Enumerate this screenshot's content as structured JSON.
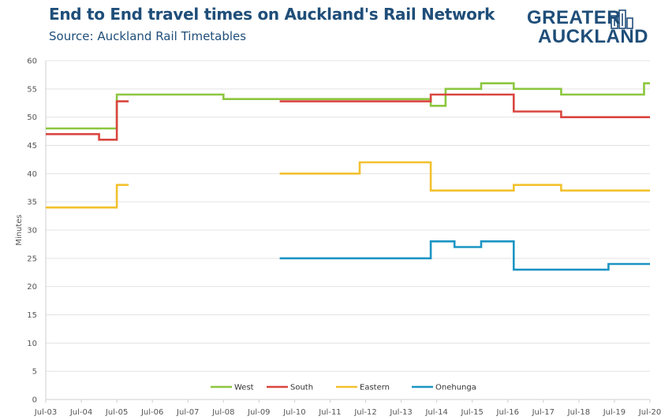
{
  "title": "End to End travel times on Auckland's Rail Network",
  "subtitle": "Source: Auckland Rail Timetables",
  "logo": {
    "line1": "GREATER",
    "line2": "AUCKLAND",
    "icon": "buildings-icon",
    "color": "#1f4e79"
  },
  "chart_data": {
    "type": "line",
    "step": true,
    "title": "End to End travel times on Auckland's Rail Network",
    "subtitle": "Source: Auckland Rail Timetables",
    "xlabel": "",
    "ylabel": "Minutes",
    "xlim": [
      "2003-07",
      "2020-07"
    ],
    "ylim": [
      0,
      60
    ],
    "yticks": [
      0,
      5,
      10,
      15,
      20,
      25,
      30,
      35,
      40,
      45,
      50,
      55,
      60
    ],
    "xtick_labels": [
      "Jul-03",
      "Jul-04",
      "Jul-05",
      "Jul-06",
      "Jul-07",
      "Jul-08",
      "Jul-09",
      "Jul-10",
      "Jul-11",
      "Jul-12",
      "Jul-13",
      "Jul-14",
      "Jul-15",
      "Jul-16",
      "Jul-17",
      "Jul-18",
      "Jul-19",
      "Jul-20"
    ],
    "grid": "horizontal",
    "legend": "bottom",
    "series": [
      {
        "name": "West",
        "color": "#8cc63f",
        "segments": [
          [
            [
              "2003-07",
              48
            ],
            [
              "2005-07",
              48
            ],
            [
              "2005-07",
              54
            ],
            [
              "2008-07",
              54
            ],
            [
              "2008-07",
              53.2
            ],
            [
              "2014-05",
              53.2
            ],
            [
              "2014-05",
              52
            ],
            [
              "2014-10",
              52
            ],
            [
              "2014-10",
              55
            ],
            [
              "2015-10",
              55
            ],
            [
              "2015-10",
              56
            ],
            [
              "2016-09",
              56
            ],
            [
              "2016-09",
              55
            ],
            [
              "2018-01",
              55
            ],
            [
              "2018-01",
              54
            ],
            [
              "2020-05",
              54
            ],
            [
              "2020-05",
              56
            ],
            [
              "2020-07",
              56
            ]
          ]
        ]
      },
      {
        "name": "South",
        "color": "#d9463f",
        "segments": [
          [
            [
              "2003-07",
              47
            ],
            [
              "2005-01",
              47
            ],
            [
              "2005-01",
              46
            ],
            [
              "2005-07",
              46
            ],
            [
              "2005-07",
              52.8
            ],
            [
              "2005-11",
              52.8
            ]
          ],
          [
            [
              "2010-02",
              52.8
            ],
            [
              "2014-05",
              52.8
            ],
            [
              "2014-05",
              54
            ],
            [
              "2016-09",
              54
            ],
            [
              "2016-09",
              51
            ],
            [
              "2018-01",
              51
            ],
            [
              "2018-01",
              50
            ],
            [
              "2020-07",
              50
            ]
          ]
        ]
      },
      {
        "name": "Eastern",
        "color": "#f2c12e",
        "segments": [
          [
            [
              "2003-07",
              34
            ],
            [
              "2005-07",
              34
            ],
            [
              "2005-07",
              38
            ],
            [
              "2005-11",
              38
            ]
          ],
          [
            [
              "2010-02",
              40
            ],
            [
              "2012-05",
              40
            ],
            [
              "2012-05",
              42
            ],
            [
              "2014-05",
              42
            ],
            [
              "2014-05",
              37
            ],
            [
              "2016-09",
              37
            ],
            [
              "2016-09",
              38
            ],
            [
              "2018-01",
              38
            ],
            [
              "2018-01",
              37
            ],
            [
              "2020-07",
              37
            ]
          ]
        ]
      },
      {
        "name": "Onehunga",
        "color": "#1b95c3",
        "segments": [
          [
            [
              "2010-02",
              25
            ],
            [
              "2014-05",
              25
            ],
            [
              "2014-05",
              28
            ],
            [
              "2015-01",
              28
            ],
            [
              "2015-01",
              27
            ],
            [
              "2015-10",
              27
            ],
            [
              "2015-10",
              28
            ],
            [
              "2016-09",
              28
            ],
            [
              "2016-09",
              23
            ],
            [
              "2019-05",
              23
            ],
            [
              "2019-05",
              24
            ],
            [
              "2020-07",
              24
            ]
          ]
        ]
      }
    ]
  }
}
